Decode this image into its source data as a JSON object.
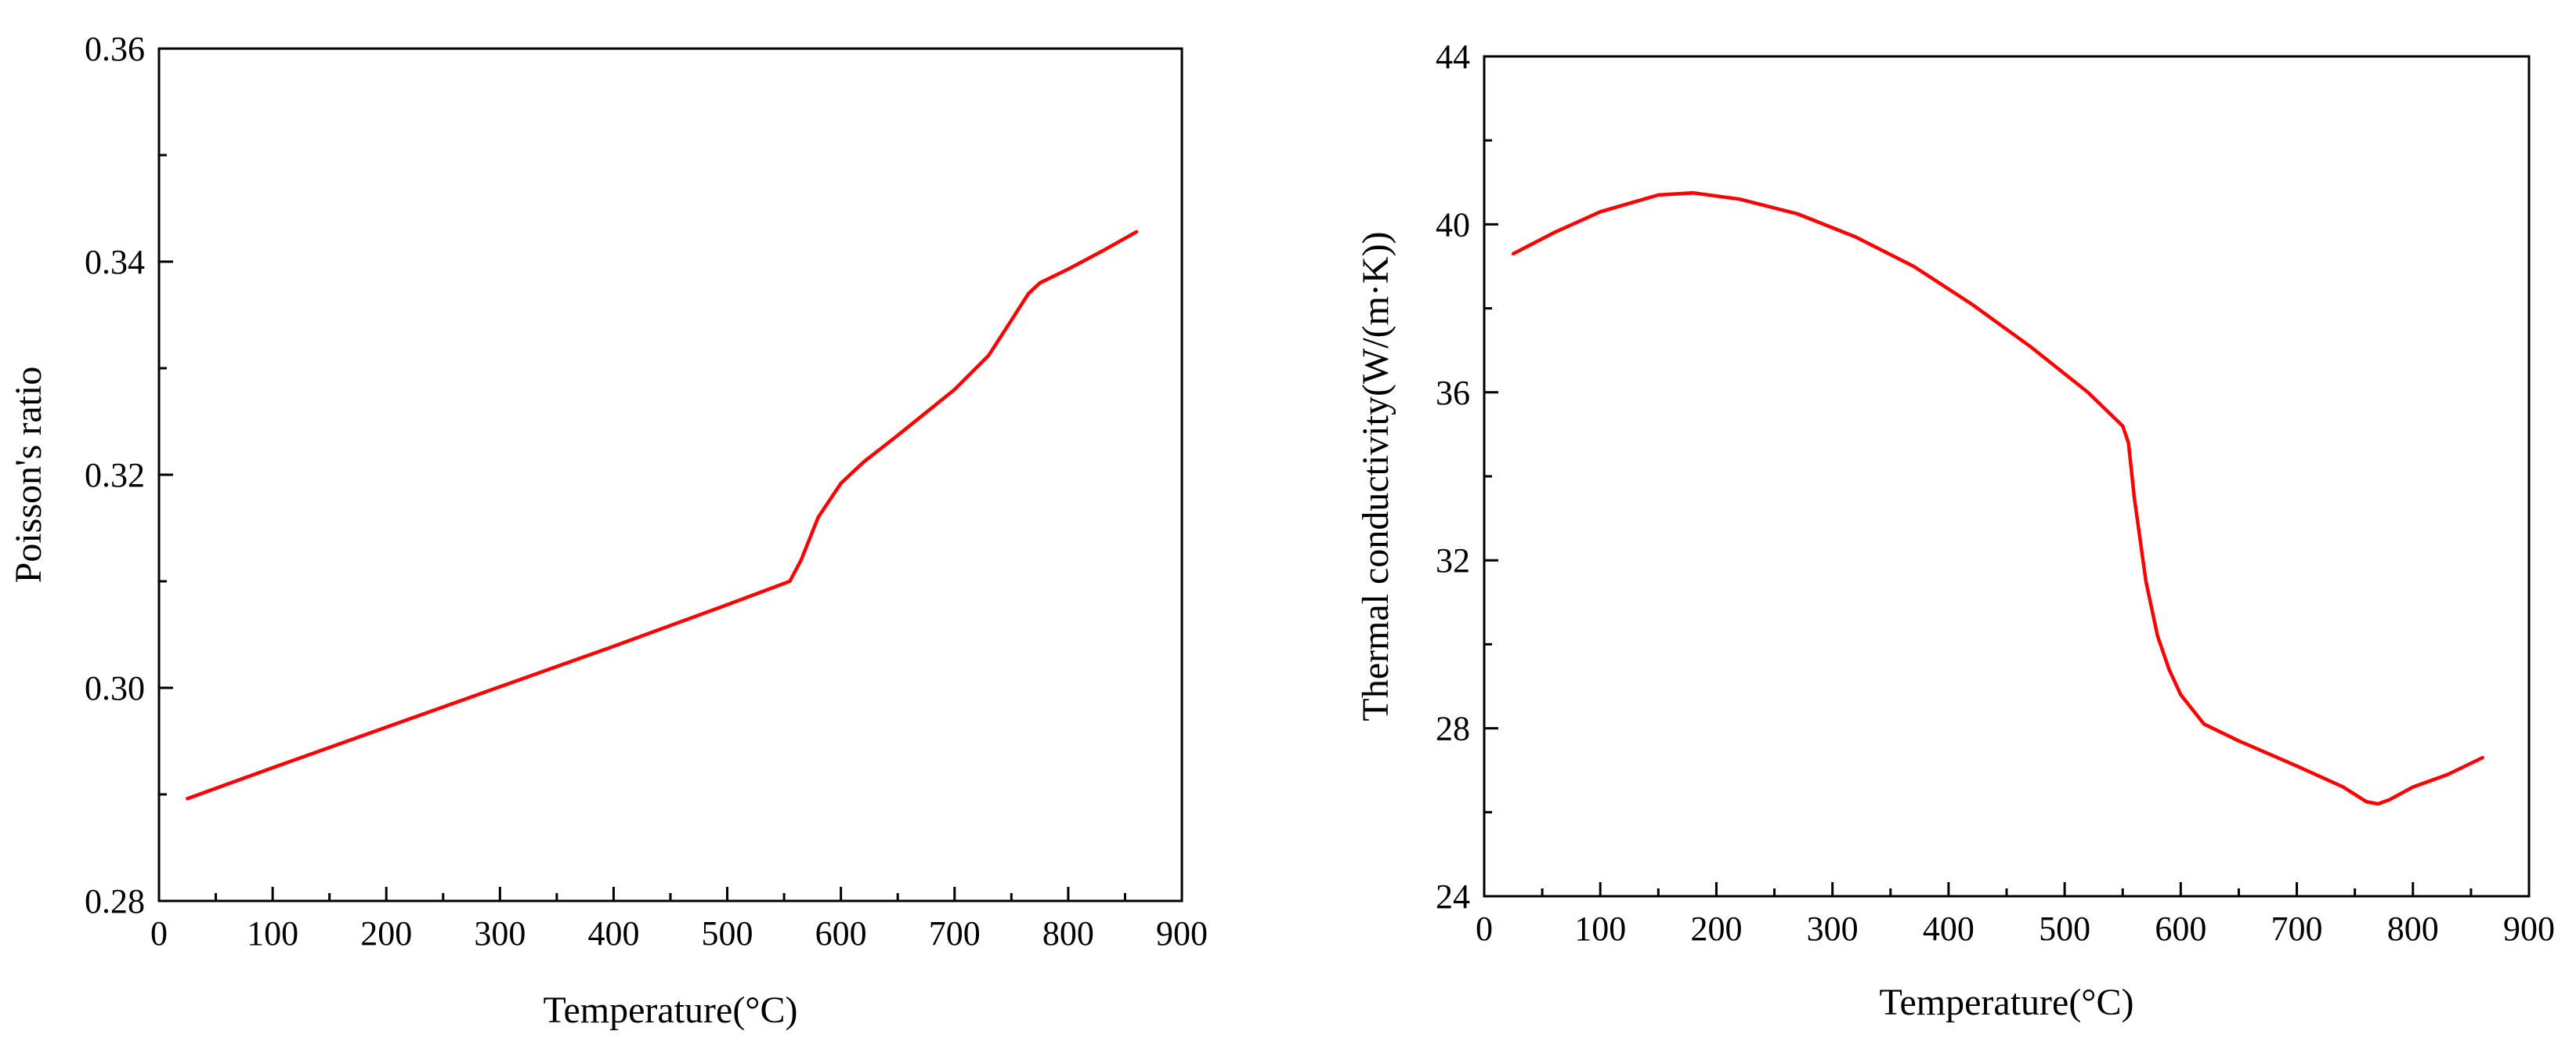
{
  "chart_data": [
    {
      "type": "line",
      "title": "",
      "xlabel": "Temperature(°C)",
      "ylabel": "Poisson's ratio",
      "xlim": [
        0,
        900
      ],
      "ylim": [
        0.28,
        0.36
      ],
      "x_ticks": [
        0,
        100,
        200,
        300,
        400,
        500,
        600,
        700,
        800,
        900
      ],
      "x_tick_labels": [
        "0",
        "100",
        "200",
        "300",
        "400",
        "500",
        "600",
        "700",
        "800",
        "900"
      ],
      "y_ticks": [
        0.28,
        0.3,
        0.32,
        0.34,
        0.36
      ],
      "y_tick_labels": [
        "0.28",
        "0.30",
        "0.32",
        "0.34",
        "0.36"
      ],
      "y_minor_step": 0.01,
      "grid": false,
      "line_color": "#ff0000",
      "series": [
        {
          "x": [
            25,
            100,
            200,
            300,
            400,
            500,
            555,
            565,
            580,
            600,
            620,
            650,
            700,
            730,
            750,
            765,
            775,
            800,
            830,
            860
          ],
          "y": [
            0.2896,
            0.2925,
            0.2963,
            0.3001,
            0.3039,
            0.3078,
            0.31,
            0.312,
            0.316,
            0.3192,
            0.3212,
            0.3237,
            0.328,
            0.3312,
            0.3345,
            0.337,
            0.338,
            0.3393,
            0.341,
            0.3428
          ]
        }
      ]
    },
    {
      "type": "line",
      "title": "",
      "xlabel": "Temperature(°C)",
      "ylabel": "Thermal conductivity(W/(m·K))",
      "xlim": [
        0,
        900
      ],
      "ylim": [
        24,
        44
      ],
      "x_ticks": [
        0,
        100,
        200,
        300,
        400,
        500,
        600,
        700,
        800,
        900
      ],
      "x_tick_labels": [
        "0",
        "100",
        "200",
        "300",
        "400",
        "500",
        "600",
        "700",
        "800",
        "900"
      ],
      "y_ticks": [
        24,
        28,
        32,
        36,
        40,
        44
      ],
      "y_tick_labels": [
        "24",
        "28",
        "32",
        "36",
        "40",
        "44"
      ],
      "y_minor_step": 2,
      "grid": false,
      "line_color": "#ff0000",
      "series": [
        {
          "x": [
            25,
            60,
            100,
            150,
            180,
            220,
            270,
            320,
            370,
            420,
            470,
            520,
            550,
            555,
            560,
            570,
            580,
            590,
            600,
            620,
            650,
            700,
            740,
            760,
            770,
            780,
            800,
            830,
            860
          ],
          "y": [
            39.3,
            39.8,
            40.3,
            40.7,
            40.75,
            40.6,
            40.25,
            39.7,
            39.0,
            38.1,
            37.1,
            36.0,
            35.2,
            34.8,
            33.5,
            31.5,
            30.2,
            29.4,
            28.8,
            28.1,
            27.7,
            27.1,
            26.6,
            26.25,
            26.2,
            26.3,
            26.6,
            26.9,
            27.3
          ]
        }
      ]
    }
  ]
}
